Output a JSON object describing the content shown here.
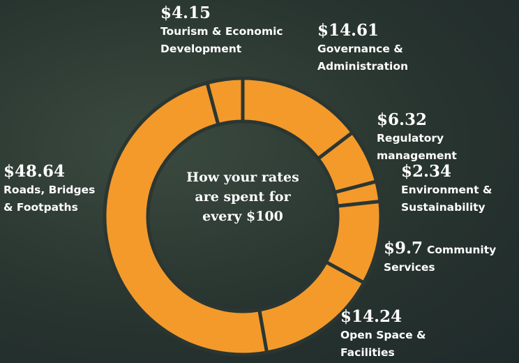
{
  "chart_data": {
    "type": "donut",
    "title": "How your rates are spent for every $100",
    "categories": [
      "Governance & Administration",
      "Regulatory management",
      "Environment & Sustainability",
      "Community Services",
      "Open Space & Facilities",
      "Roads, Bridges & Footpaths",
      "Tourism & Economic Development"
    ],
    "values": [
      14.61,
      6.32,
      2.34,
      9.7,
      14.24,
      48.64,
      4.15
    ],
    "value_labels": [
      "$14.61",
      "$6.32",
      "$2.34",
      "$9.7",
      "$14.24",
      "$48.64",
      "$4.15"
    ],
    "color": "#f39a2b"
  }
}
